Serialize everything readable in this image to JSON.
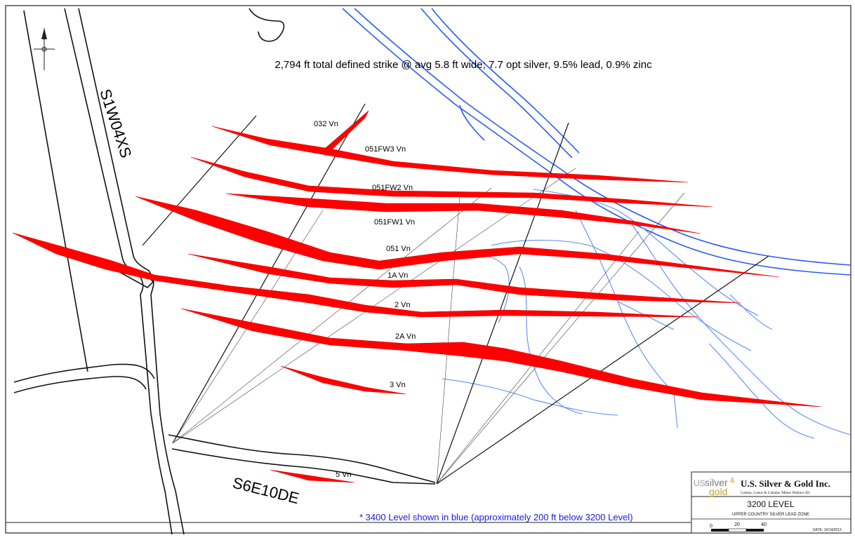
{
  "headline": "2,794 ft total defined strike @ avg 5.8 ft wide; 7.7 opt silver, 9.5% lead, 0.9% zinc",
  "drifts": {
    "west": "S1W04XS",
    "south": "S6E10DE"
  },
  "veins": [
    {
      "id": "032",
      "label": "032 Vn"
    },
    {
      "id": "051fw3",
      "label": "051FW3 Vn"
    },
    {
      "id": "051fw2",
      "label": "051FW2 Vn"
    },
    {
      "id": "051fw1",
      "label": "051FW1 Vn"
    },
    {
      "id": "051",
      "label": "051 Vn"
    },
    {
      "id": "1a",
      "label": "1A Vn"
    },
    {
      "id": "2",
      "label": "2 Vn"
    },
    {
      "id": "2a",
      "label": "2A Vn"
    },
    {
      "id": "3",
      "label": "3 Vn"
    },
    {
      "id": "5",
      "label": "5 Vn"
    }
  ],
  "note": "* 3400 Level shown in blue (approximately 200 ft below 3200 Level)",
  "titleblock": {
    "logo_us": "US",
    "logo_silver": "silver",
    "logo_amp": "&",
    "logo_gold": "gold",
    "company": "U.S. Silver & Gold Inc.",
    "company_sub": "Galena, Coeur & Caladay Mines Wallace ID.",
    "level": "3200 LEVEL",
    "zone": "UPPER COUNTRY SILVER LEAD ZONE",
    "scale_ticks": [
      "0",
      "20",
      "40"
    ],
    "date": "DATE: 10/14/2013"
  },
  "colors": {
    "vein": "#ff0000",
    "level_3400": "#2b5bf0",
    "note_text": "#1a1ae6"
  }
}
